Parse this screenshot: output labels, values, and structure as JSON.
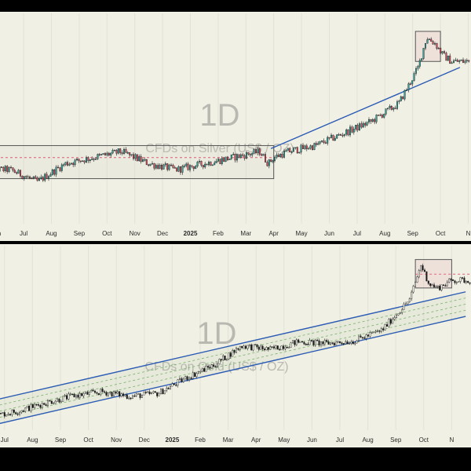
{
  "colors": {
    "background": "#f1f0e4",
    "frame": "#000000",
    "candle": "#1b1b1b",
    "candle_up": "#2fa39a",
    "candle_down": "#d94a5a",
    "trendline": "#2a5bb5",
    "box": "#555555",
    "pink_dash": "#e05a78",
    "green_dash": "#7ab06e"
  },
  "chart_data": [
    {
      "type": "candlestick",
      "name": "silver-panel",
      "watermark_interval": "1D",
      "watermark_symbol": "CFDs on Silver (US$ / OZ)",
      "x_ticks": [
        "Jun",
        "Jul",
        "Aug",
        "Sep",
        "Oct",
        "Nov",
        "Dec",
        "2025",
        "Feb",
        "Mar",
        "Apr",
        "May",
        "Jun",
        "Jul",
        "Aug",
        "Sep",
        "Oct",
        "N"
      ],
      "bold_ticks": [
        "2025"
      ],
      "x_range_months": [
        0,
        18
      ],
      "y_range": [
        20,
        55
      ],
      "close_keys": [
        [
          0,
          29
        ],
        [
          1,
          29
        ],
        [
          2,
          27
        ],
        [
          3,
          30
        ],
        [
          4,
          31
        ],
        [
          5,
          32
        ],
        [
          6,
          30
        ],
        [
          7,
          29
        ],
        [
          8,
          30
        ],
        [
          9,
          31
        ],
        [
          10,
          32
        ],
        [
          10.3,
          30
        ],
        [
          10.5,
          31
        ],
        [
          11,
          32
        ],
        [
          12,
          33
        ],
        [
          13,
          35
        ],
        [
          14,
          37
        ],
        [
          15,
          40
        ],
        [
          15.7,
          46
        ],
        [
          16,
          51
        ],
        [
          16.3,
          50
        ],
        [
          16.6,
          48
        ],
        [
          16.9,
          47
        ]
      ],
      "consolidation_box": {
        "x": [
          0,
          10.5
        ],
        "y": [
          27.5,
          33
        ]
      },
      "top_box": {
        "x": [
          15.6,
          16.5
        ],
        "y": [
          47,
          52
        ]
      },
      "pink_level": 31,
      "trendline": [
        [
          10.4,
          32.5
        ],
        [
          17.2,
          46
        ]
      ]
    },
    {
      "type": "candlestick",
      "name": "gold-panel",
      "watermark_interval": "1D",
      "watermark_symbol": "CFDs on Gold (US$ / OZ)",
      "x_ticks": [
        "Jul",
        "Aug",
        "Sep",
        "Oct",
        "Nov",
        "Dec",
        "2025",
        "Feb",
        "Mar",
        "Apr",
        "May",
        "Jun",
        "Jul",
        "Aug",
        "Sep",
        "Oct",
        "N"
      ],
      "bold_ticks": [
        "2025"
      ],
      "x_range_months": [
        0,
        17
      ],
      "y_range": [
        2200,
        4600
      ],
      "close_keys": [
        [
          0,
          2380
        ],
        [
          1,
          2450
        ],
        [
          2,
          2560
        ],
        [
          3,
          2650
        ],
        [
          4,
          2700
        ],
        [
          5,
          2640
        ],
        [
          6,
          2680
        ],
        [
          7,
          2880
        ],
        [
          8,
          3050
        ],
        [
          9,
          3300
        ],
        [
          10,
          3250
        ],
        [
          11,
          3350
        ],
        [
          12,
          3330
        ],
        [
          13,
          3360
        ],
        [
          14,
          3500
        ],
        [
          14.5,
          3700
        ],
        [
          15,
          3900
        ],
        [
          15.4,
          4350
        ],
        [
          15.7,
          4100
        ],
        [
          16,
          4050
        ],
        [
          16.5,
          4150
        ]
      ],
      "channel_upper": [
        [
          0,
          2580
        ],
        [
          17,
          4000
        ]
      ],
      "channel_lower": [
        [
          0,
          2260
        ],
        [
          17,
          3680
        ]
      ],
      "top_box": {
        "x": [
          15.2,
          16.5
        ],
        "y": [
          4050,
          4420
        ]
      },
      "pink_level": 4230
    }
  ]
}
